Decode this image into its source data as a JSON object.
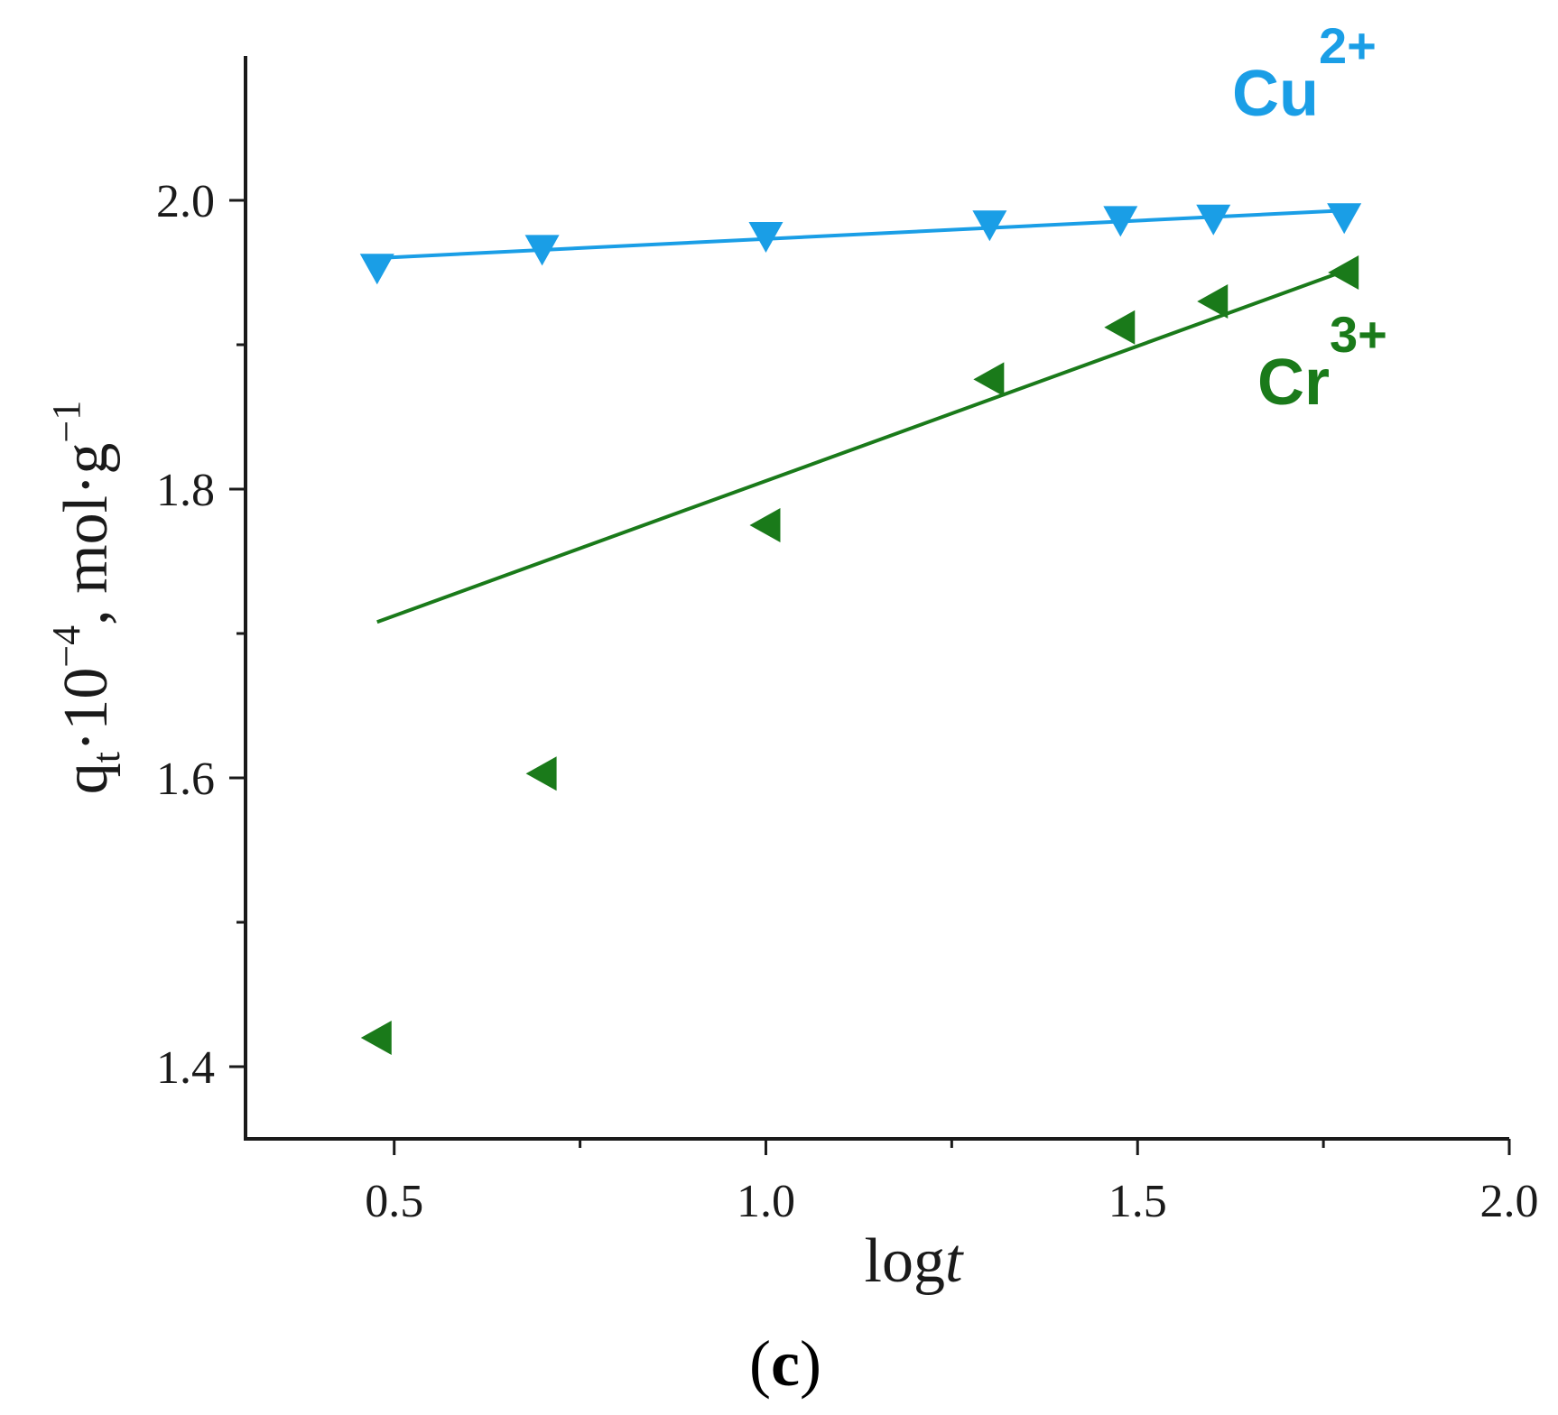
{
  "chart_data": {
    "type": "scatter",
    "title": "",
    "panel_label": {
      "open": "(",
      "letter": "c",
      "close": ")"
    },
    "xlabel": {
      "main": "log",
      "italic": "t"
    },
    "ylabel": {
      "q": "q",
      "sub": "t",
      "times_ten": "·10",
      "exp": "−4",
      "unit": ", mol·g",
      "unit_exp": "−1"
    },
    "xlim": [
      0.3,
      2.0
    ],
    "ylim": [
      1.35,
      2.1
    ],
    "x_ticks": [
      {
        "value": 0.5,
        "label": "0.5"
      },
      {
        "value": 1.0,
        "label": "1.0"
      },
      {
        "value": 1.5,
        "label": "1.5"
      },
      {
        "value": 2.0,
        "label": "2.0"
      }
    ],
    "x_minor_ticks": [
      0.75,
      1.25,
      1.75
    ],
    "y_ticks": [
      {
        "value": 1.4,
        "label": "1.4"
      },
      {
        "value": 1.6,
        "label": "1.6"
      },
      {
        "value": 1.8,
        "label": "1.8"
      },
      {
        "value": 2.0,
        "label": "2.0"
      }
    ],
    "y_minor_ticks": [
      1.5,
      1.7,
      1.9
    ],
    "series": [
      {
        "name": "Cu",
        "charge": "2+",
        "color": "#1a9ee6",
        "marker": "triangle-down",
        "points": [
          {
            "x": 0.477,
            "y": 1.953
          },
          {
            "x": 0.699,
            "y": 1.966
          },
          {
            "x": 1.0,
            "y": 1.975
          },
          {
            "x": 1.301,
            "y": 1.983
          },
          {
            "x": 1.477,
            "y": 1.986
          },
          {
            "x": 1.602,
            "y": 1.987
          },
          {
            "x": 1.778,
            "y": 1.988
          }
        ],
        "fit": {
          "x": [
            0.477,
            1.778
          ],
          "y": [
            1.96,
            1.993
          ]
        }
      },
      {
        "name": "Cr",
        "charge": "3+",
        "color": "#1a7a1a",
        "marker": "triangle-left",
        "points": [
          {
            "x": 0.477,
            "y": 1.42
          },
          {
            "x": 0.699,
            "y": 1.603
          },
          {
            "x": 1.0,
            "y": 1.775
          },
          {
            "x": 1.301,
            "y": 1.876
          },
          {
            "x": 1.477,
            "y": 1.912
          },
          {
            "x": 1.602,
            "y": 1.93
          },
          {
            "x": 1.778,
            "y": 1.95
          }
        ],
        "fit": {
          "x": [
            0.477,
            1.778
          ],
          "y": [
            1.708,
            1.951
          ]
        }
      }
    ],
    "grid": false,
    "legend": "inline-labels"
  }
}
